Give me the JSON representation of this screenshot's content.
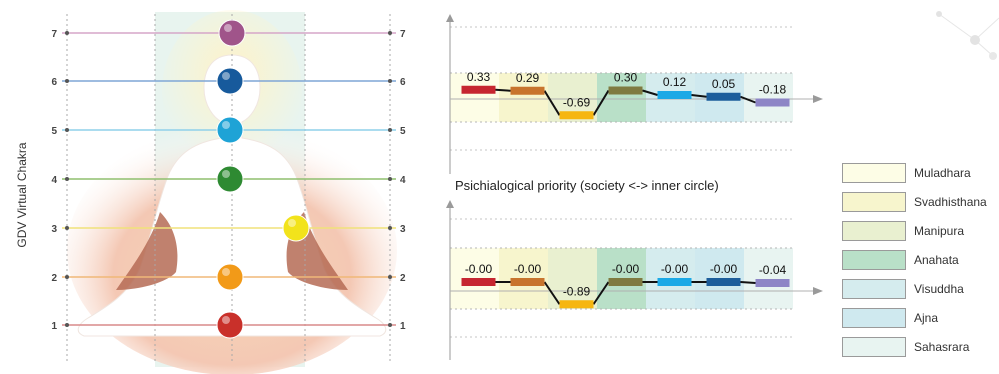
{
  "figure": {
    "y_axis_label": "GDV Virtual Chakra",
    "caption": "Psichialogical priority (society <-> inner circle)",
    "level_numbers": [
      "1",
      "2",
      "3",
      "4",
      "5",
      "6",
      "7"
    ]
  },
  "legend": {
    "items": [
      {
        "label": "Muladhara",
        "color": "#fdfde6"
      },
      {
        "label": "Svadhisthana",
        "color": "#f7f5cd"
      },
      {
        "label": "Manipura",
        "color": "#e9f0d0"
      },
      {
        "label": "Anahata",
        "color": "#b9e0c8"
      },
      {
        "label": "Visuddha",
        "color": "#d5ecee"
      },
      {
        "label": "Ajna",
        "color": "#cfe9ef"
      },
      {
        "label": "Sahasrara",
        "color": "#e8f4f1"
      }
    ]
  },
  "chakra_colors": [
    "#c9302a",
    "#f29a18",
    "#f2e31b",
    "#2e8a32",
    "#1ea3d6",
    "#175a9c",
    "#a0548a"
  ],
  "chart_data": [
    {
      "type": "line",
      "categories": [
        "Muladhara",
        "Svadhisthana",
        "Manipura",
        "Anahata",
        "Visuddha",
        "Ajna",
        "Sahasrara"
      ],
      "values": [
        0.33,
        0.29,
        -0.69,
        0.3,
        0.12,
        0.05,
        -0.18
      ],
      "labels": [
        "0.33",
        "0.29",
        "-0.69",
        "0.30",
        "0.12",
        "0.05",
        "-0.18"
      ],
      "segment_colors": [
        "#c62631",
        "#c8742d",
        "#f6b610",
        "#7f7a40",
        "#1ba9e6",
        "#1c5d9b",
        "#8d85c6"
      ],
      "xlabel": "Psichialogical priority (society <-> inner circle)",
      "ylabel": "",
      "ylim": [
        -1,
        1
      ],
      "grid": true
    },
    {
      "type": "line",
      "categories": [
        "Muladhara",
        "Svadhisthana",
        "Manipura",
        "Anahata",
        "Visuddha",
        "Ajna",
        "Sahasrara"
      ],
      "values": [
        0.0,
        0.0,
        -0.89,
        0.0,
        0.0,
        0.0,
        -0.04
      ],
      "labels": [
        "-0.00",
        "-0.00",
        "-0.89",
        "-0.00",
        "-0.00",
        "-0.00",
        "-0.04"
      ],
      "segment_colors": [
        "#c62631",
        "#c8742d",
        "#f6b610",
        "#7f7a40",
        "#1ba9e6",
        "#1c5d9b",
        "#8d85c6"
      ],
      "xlabel": "",
      "ylabel": "",
      "ylim": [
        -1,
        1
      ],
      "grid": true
    }
  ]
}
